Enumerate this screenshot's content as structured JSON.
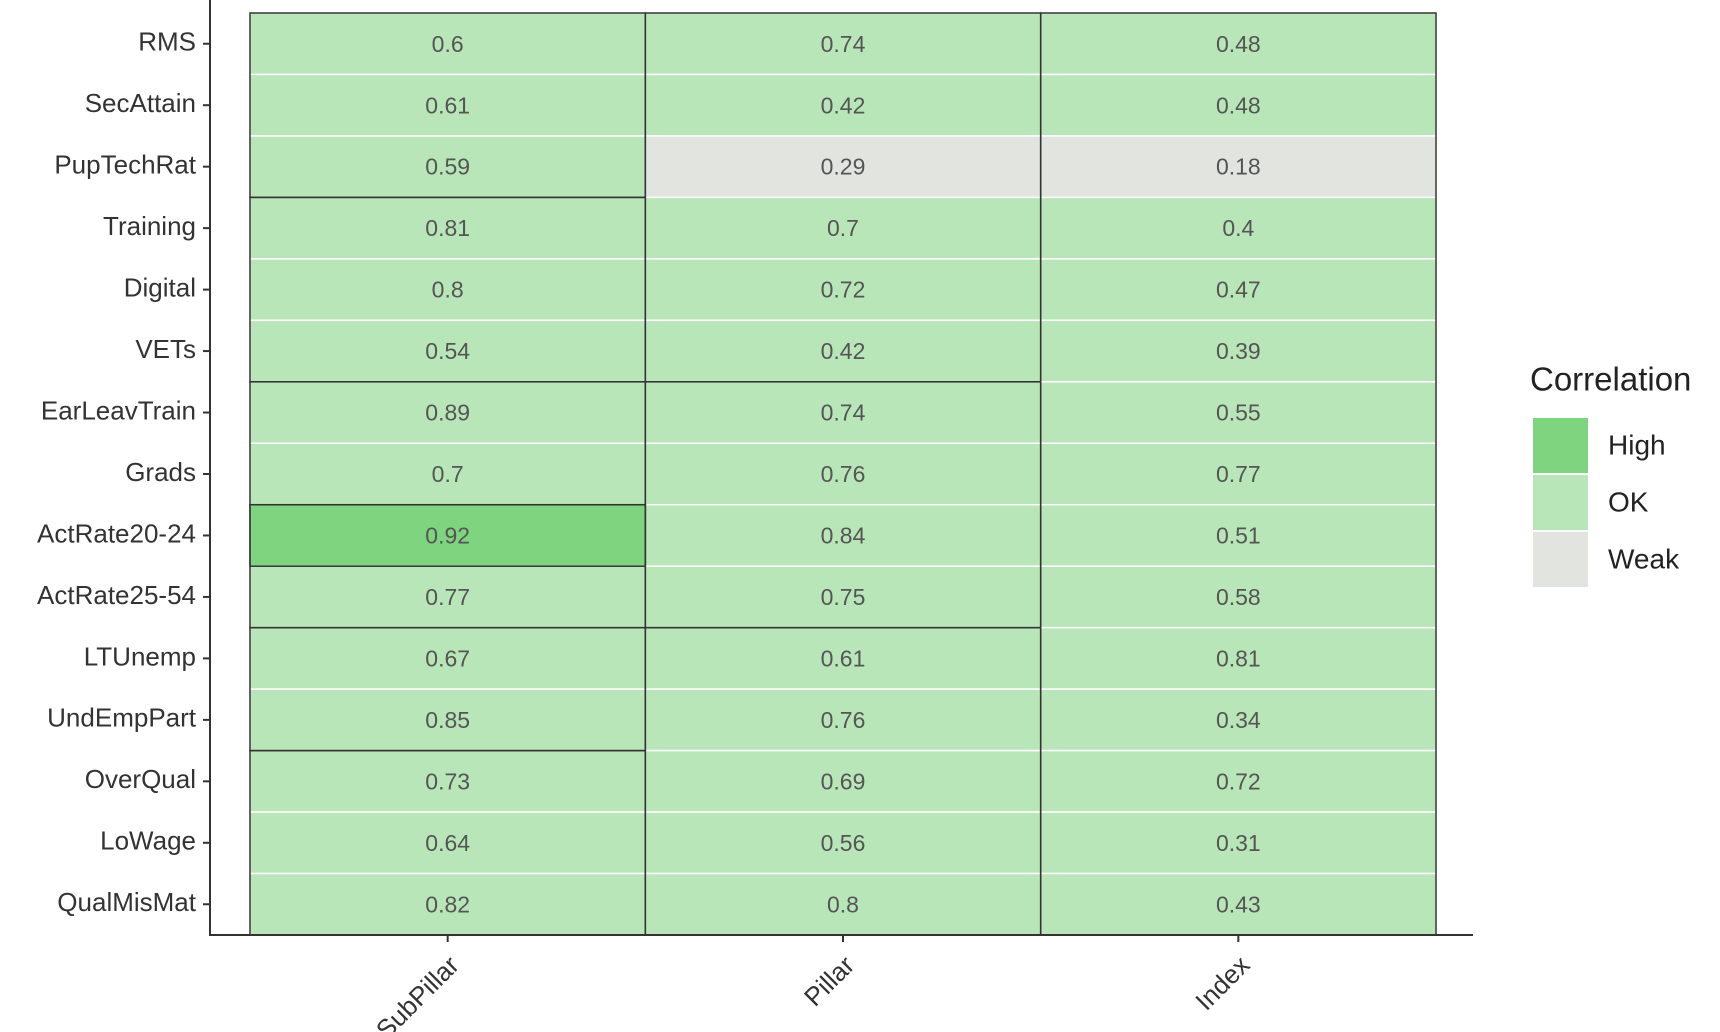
{
  "chart_data": {
    "type": "heatmap",
    "x_categories": [
      "SubPillar",
      "Pillar",
      "Index"
    ],
    "y_categories": [
      "RMS",
      "SecAttain",
      "PupTechRat",
      "Training",
      "Digital",
      "VETs",
      "EarLeavTrain",
      "Grads",
      "ActRate20-24",
      "ActRate25-54",
      "LTUnemp",
      "UndEmpPart",
      "OverQual",
      "LoWage",
      "QualMisMat"
    ],
    "values": [
      [
        0.6,
        0.74,
        0.48
      ],
      [
        0.61,
        0.42,
        0.48
      ],
      [
        0.59,
        0.29,
        0.18
      ],
      [
        0.81,
        0.7,
        0.4
      ],
      [
        0.8,
        0.72,
        0.47
      ],
      [
        0.54,
        0.42,
        0.39
      ],
      [
        0.89,
        0.74,
        0.55
      ],
      [
        0.7,
        0.76,
        0.77
      ],
      [
        0.92,
        0.84,
        0.51
      ],
      [
        0.77,
        0.75,
        0.58
      ],
      [
        0.67,
        0.61,
        0.81
      ],
      [
        0.85,
        0.76,
        0.34
      ],
      [
        0.73,
        0.69,
        0.72
      ],
      [
        0.64,
        0.56,
        0.31
      ],
      [
        0.82,
        0.8,
        0.43
      ]
    ],
    "levels": [
      [
        "OK",
        "OK",
        "OK"
      ],
      [
        "OK",
        "OK",
        "OK"
      ],
      [
        "OK",
        "Weak",
        "Weak"
      ],
      [
        "OK",
        "OK",
        "OK"
      ],
      [
        "OK",
        "OK",
        "OK"
      ],
      [
        "OK",
        "OK",
        "OK"
      ],
      [
        "OK",
        "OK",
        "OK"
      ],
      [
        "OK",
        "OK",
        "OK"
      ],
      [
        "High",
        "OK",
        "OK"
      ],
      [
        "OK",
        "OK",
        "OK"
      ],
      [
        "OK",
        "OK",
        "OK"
      ],
      [
        "OK",
        "OK",
        "OK"
      ],
      [
        "OK",
        "OK",
        "OK"
      ],
      [
        "OK",
        "OK",
        "OK"
      ],
      [
        "OK",
        "OK",
        "OK"
      ]
    ],
    "legend": {
      "title": "Correlation",
      "items": [
        {
          "name": "High",
          "color": "#7fd47f"
        },
        {
          "name": "OK",
          "color": "#b8e6b8"
        },
        {
          "name": "Weak",
          "color": "#e1e4df"
        }
      ]
    }
  }
}
